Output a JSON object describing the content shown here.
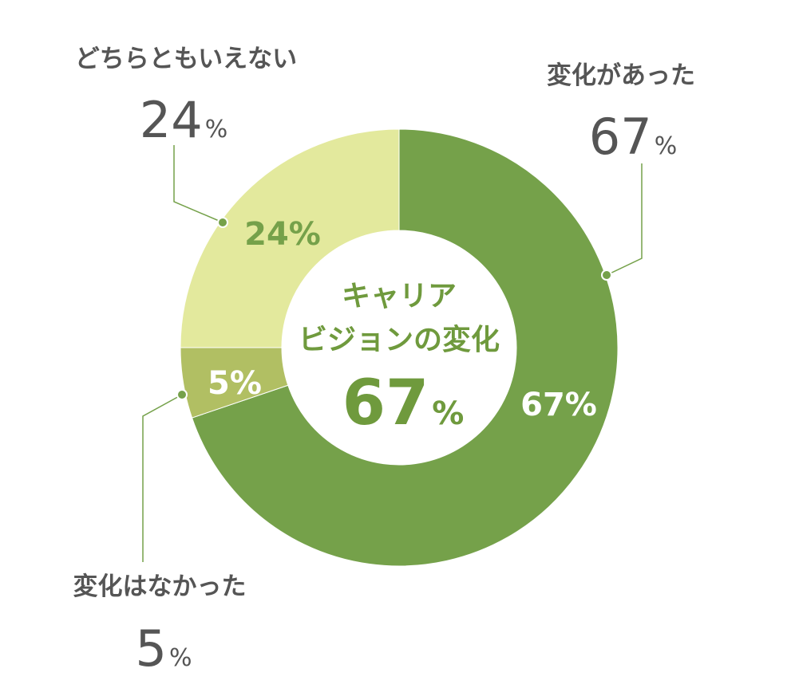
{
  "chart_data": {
    "type": "pie",
    "donut": true,
    "slices": [
      {
        "label": "変化があった",
        "value": 67,
        "value_text": "67",
        "inner_text": "67%",
        "color": "#75a14a",
        "inner_text_color": "#ffffff"
      },
      {
        "label": "変化はなかった",
        "value": 5,
        "value_text": "5",
        "inner_text": "5%",
        "color": "#b1bf63",
        "inner_text_color": "#ffffff"
      },
      {
        "label": "どちらともいえない",
        "value": 24,
        "value_text": "24",
        "inner_text": "24%",
        "color": "#e3e99d",
        "inner_text_color": "#75a14a"
      }
    ],
    "center": {
      "title_line1": "キャリア",
      "title_line2": "ビジョンの変化",
      "value": "67",
      "unit": "%"
    },
    "percent_sign": "%",
    "leader_color": "#75a14a"
  }
}
